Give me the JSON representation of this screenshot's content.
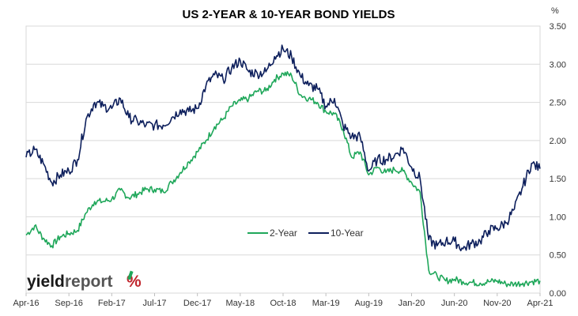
{
  "chart_data": {
    "type": "line",
    "title": "US 2-YEAR & 10-YEAR BOND YIELDS",
    "y_unit": "%",
    "ylim": [
      0,
      3.5
    ],
    "y_ticks": [
      "0.00",
      "0.50",
      "1.00",
      "1.50",
      "2.00",
      "2.50",
      "3.00",
      "3.50"
    ],
    "y_axis_side": "right",
    "grid": true,
    "x_ticks": [
      "Apr-16",
      "Sep-16",
      "Feb-17",
      "Jul-17",
      "Dec-17",
      "May-18",
      "Oct-18",
      "Mar-19",
      "Aug-19",
      "Jan-20",
      "Jun-20",
      "Nov-20",
      "Apr-21"
    ],
    "legend_position": "center-bottom",
    "series": [
      {
        "name": "2-Year",
        "color": "#1fa75a",
        "x": [
          "Apr-16",
          "May-16",
          "Jun-16",
          "Jul-16",
          "Aug-16",
          "Sep-16",
          "Oct-16",
          "Nov-16",
          "Dec-16",
          "Jan-17",
          "Feb-17",
          "Mar-17",
          "Apr-17",
          "May-17",
          "Jun-17",
          "Jul-17",
          "Aug-17",
          "Sep-17",
          "Oct-17",
          "Nov-17",
          "Dec-17",
          "Jan-18",
          "Feb-18",
          "Mar-18",
          "Apr-18",
          "May-18",
          "Jun-18",
          "Jul-18",
          "Aug-18",
          "Sep-18",
          "Oct-18",
          "Nov-18",
          "Dec-18",
          "Jan-19",
          "Feb-19",
          "Mar-19",
          "Apr-19",
          "May-19",
          "Jun-19",
          "Jul-19",
          "Aug-19",
          "Sep-19",
          "Oct-19",
          "Nov-19",
          "Dec-19",
          "Jan-20",
          "Feb-20",
          "Mar-20",
          "Apr-20",
          "May-20",
          "Jun-20",
          "Jul-20",
          "Aug-20",
          "Sep-20",
          "Oct-20",
          "Nov-20",
          "Dec-20",
          "Jan-21",
          "Feb-21",
          "Mar-21",
          "Apr-21"
        ],
        "values": [
          0.76,
          0.88,
          0.72,
          0.62,
          0.74,
          0.78,
          0.82,
          1.05,
          1.2,
          1.2,
          1.23,
          1.35,
          1.25,
          1.3,
          1.36,
          1.36,
          1.33,
          1.45,
          1.58,
          1.72,
          1.85,
          2.0,
          2.18,
          2.28,
          2.45,
          2.52,
          2.55,
          2.65,
          2.65,
          2.8,
          2.88,
          2.85,
          2.6,
          2.55,
          2.5,
          2.38,
          2.35,
          2.15,
          1.78,
          1.85,
          1.55,
          1.65,
          1.58,
          1.62,
          1.6,
          1.45,
          1.32,
          0.3,
          0.22,
          0.16,
          0.18,
          0.15,
          0.14,
          0.13,
          0.15,
          0.16,
          0.12,
          0.12,
          0.13,
          0.15,
          0.16
        ]
      },
      {
        "name": "10-Year",
        "color": "#0d1f5c",
        "x": [
          "Apr-16",
          "May-16",
          "Jun-16",
          "Jul-16",
          "Aug-16",
          "Sep-16",
          "Oct-16",
          "Nov-16",
          "Dec-16",
          "Jan-17",
          "Feb-17",
          "Mar-17",
          "Apr-17",
          "May-17",
          "Jun-17",
          "Jul-17",
          "Aug-17",
          "Sep-17",
          "Oct-17",
          "Nov-17",
          "Dec-17",
          "Jan-18",
          "Feb-18",
          "Mar-18",
          "Apr-18",
          "May-18",
          "Jun-18",
          "Jul-18",
          "Aug-18",
          "Sep-18",
          "Oct-18",
          "Nov-18",
          "Dec-18",
          "Jan-19",
          "Feb-19",
          "Mar-19",
          "Apr-19",
          "May-19",
          "Jun-19",
          "Jul-19",
          "Aug-19",
          "Sep-19",
          "Oct-19",
          "Nov-19",
          "Dec-19",
          "Jan-20",
          "Feb-20",
          "Mar-20",
          "Apr-20",
          "May-20",
          "Jun-20",
          "Jul-20",
          "Aug-20",
          "Sep-20",
          "Oct-20",
          "Nov-20",
          "Dec-20",
          "Jan-21",
          "Feb-21",
          "Mar-21",
          "Apr-21"
        ],
        "values": [
          1.78,
          1.88,
          1.7,
          1.45,
          1.55,
          1.6,
          1.75,
          2.28,
          2.5,
          2.45,
          2.42,
          2.55,
          2.3,
          2.25,
          2.2,
          2.2,
          2.2,
          2.3,
          2.4,
          2.38,
          2.42,
          2.72,
          2.86,
          2.8,
          2.95,
          3.05,
          2.9,
          2.88,
          2.9,
          3.1,
          3.2,
          3.1,
          2.85,
          2.72,
          2.68,
          2.45,
          2.55,
          2.2,
          2.05,
          2.05,
          1.6,
          1.75,
          1.75,
          1.8,
          1.9,
          1.65,
          1.5,
          0.7,
          0.62,
          0.68,
          0.68,
          0.58,
          0.65,
          0.68,
          0.82,
          0.85,
          0.92,
          1.1,
          1.4,
          1.7,
          1.63
        ]
      }
    ]
  },
  "logo": {
    "word_dark": "yield",
    "word_light": "report",
    "symbol": "%",
    "colors": {
      "dark": "#1a1a1a",
      "light": "#555555",
      "percent_green": "#1fa75a",
      "percent_red": "#c0262d"
    }
  }
}
